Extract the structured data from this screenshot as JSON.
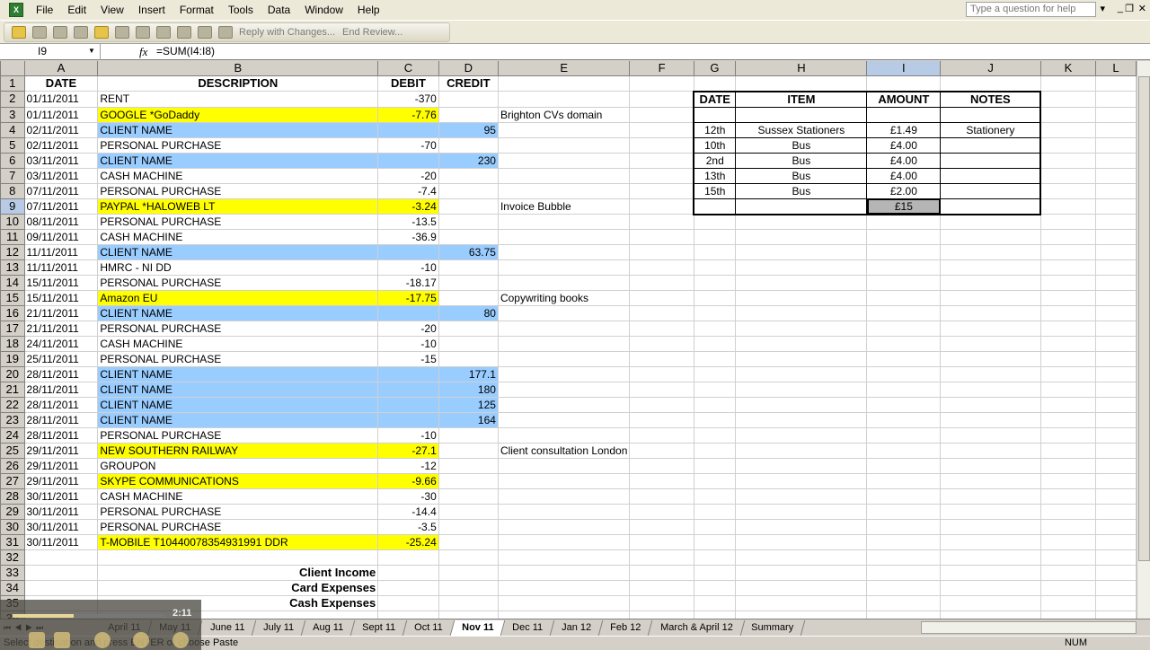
{
  "menu": [
    "File",
    "Edit",
    "View",
    "Insert",
    "Format",
    "Tools",
    "Data",
    "Window",
    "Help"
  ],
  "help_placeholder": "Type a question for help",
  "toolbar": {
    "reply": "Reply with Changes...",
    "end_review": "End Review..."
  },
  "formula_bar": {
    "name_box": "I9",
    "formula": "=SUM(I4:I8)"
  },
  "columns": [
    "A",
    "B",
    "C",
    "D",
    "E",
    "F",
    "G",
    "H",
    "I",
    "J",
    "K",
    "L"
  ],
  "selected_cell": "I9",
  "colors": {
    "yellow_highlight": "#ffff00",
    "blue_highlight": "#99ccff"
  },
  "headers": {
    "date": "DATE",
    "description": "DESCRIPTION",
    "debit": "DEBIT",
    "credit": "CREDIT"
  },
  "rows": [
    {
      "date": "01/11/2011",
      "desc": "RENT",
      "debit": "-370",
      "credit": "",
      "note": "",
      "hl": ""
    },
    {
      "date": "01/11/2011",
      "desc": "GOOGLE *GoDaddy",
      "debit": "-7.76",
      "credit": "",
      "note": "Brighton CVs domain",
      "hl": "yellow"
    },
    {
      "date": "02/11/2011",
      "desc": "CLIENT NAME",
      "debit": "",
      "credit": "95",
      "note": "",
      "hl": "blue"
    },
    {
      "date": "02/11/2011",
      "desc": "PERSONAL PURCHASE",
      "debit": "-70",
      "credit": "",
      "note": "",
      "hl": ""
    },
    {
      "date": "03/11/2011",
      "desc": "CLIENT NAME",
      "debit": "",
      "credit": "230",
      "note": "",
      "hl": "blue"
    },
    {
      "date": "03/11/2011",
      "desc": "CASH MACHINE",
      "debit": "-20",
      "credit": "",
      "note": "",
      "hl": ""
    },
    {
      "date": "07/11/2011",
      "desc": "PERSONAL PURCHASE",
      "debit": "-7.4",
      "credit": "",
      "note": "",
      "hl": ""
    },
    {
      "date": "07/11/2011",
      "desc": "PAYPAL *HALOWEB LT",
      "debit": "-3.24",
      "credit": "",
      "note": "Invoice Bubble",
      "hl": "yellow"
    },
    {
      "date": "08/11/2011",
      "desc": "PERSONAL PURCHASE",
      "debit": "-13.5",
      "credit": "",
      "note": "",
      "hl": ""
    },
    {
      "date": "09/11/2011",
      "desc": "CASH MACHINE",
      "debit": "-36.9",
      "credit": "",
      "note": "",
      "hl": ""
    },
    {
      "date": "11/11/2011",
      "desc": "CLIENT NAME",
      "debit": "",
      "credit": "63.75",
      "note": "",
      "hl": "blue"
    },
    {
      "date": "11/11/2011",
      "desc": "HMRC - NI DD",
      "debit": "-10",
      "credit": "",
      "note": "",
      "hl": ""
    },
    {
      "date": "15/11/2011",
      "desc": "PERSONAL PURCHASE",
      "debit": "-18.17",
      "credit": "",
      "note": "",
      "hl": ""
    },
    {
      "date": "15/11/2011",
      "desc": "Amazon EU",
      "debit": "-17.75",
      "credit": "",
      "note": "Copywriting books",
      "hl": "yellow"
    },
    {
      "date": "21/11/2011",
      "desc": "CLIENT NAME",
      "debit": "",
      "credit": "80",
      "note": "",
      "hl": "blue"
    },
    {
      "date": "21/11/2011",
      "desc": "PERSONAL PURCHASE",
      "debit": "-20",
      "credit": "",
      "note": "",
      "hl": ""
    },
    {
      "date": "24/11/2011",
      "desc": "CASH MACHINE",
      "debit": "-10",
      "credit": "",
      "note": "",
      "hl": ""
    },
    {
      "date": "25/11/2011",
      "desc": "PERSONAL PURCHASE",
      "debit": "-15",
      "credit": "",
      "note": "",
      "hl": ""
    },
    {
      "date": "28/11/2011",
      "desc": "CLIENT NAME",
      "debit": "",
      "credit": "177.1",
      "note": "",
      "hl": "blue"
    },
    {
      "date": "28/11/2011",
      "desc": "CLIENT NAME",
      "debit": "",
      "credit": "180",
      "note": "",
      "hl": "blue"
    },
    {
      "date": "28/11/2011",
      "desc": "CLIENT NAME",
      "debit": "",
      "credit": "125",
      "note": "",
      "hl": "blue"
    },
    {
      "date": "28/11/2011",
      "desc": "CLIENT NAME",
      "debit": "",
      "credit": "164",
      "note": "",
      "hl": "blue"
    },
    {
      "date": "28/11/2011",
      "desc": "PERSONAL PURCHASE",
      "debit": "-10",
      "credit": "",
      "note": "",
      "hl": ""
    },
    {
      "date": "29/11/2011",
      "desc": "NEW SOUTHERN RAILWAY",
      "debit": "-27.1",
      "credit": "",
      "note": "Client consultation London",
      "hl": "yellow"
    },
    {
      "date": "29/11/2011",
      "desc": "GROUPON",
      "debit": "-12",
      "credit": "",
      "note": "",
      "hl": ""
    },
    {
      "date": "29/11/2011",
      "desc": "SKYPE COMMUNICATIONS",
      "debit": "-9.66",
      "credit": "",
      "note": "",
      "hl": "yellow"
    },
    {
      "date": "30/11/2011",
      "desc": "CASH MACHINE",
      "debit": "-30",
      "credit": "",
      "note": "",
      "hl": ""
    },
    {
      "date": "30/11/2011",
      "desc": "PERSONAL PURCHASE",
      "debit": "-14.4",
      "credit": "",
      "note": "",
      "hl": ""
    },
    {
      "date": "30/11/2011",
      "desc": "PERSONAL PURCHASE",
      "debit": "-3.5",
      "credit": "",
      "note": "",
      "hl": ""
    },
    {
      "date": "30/11/2011",
      "desc": "T-MOBILE                    T10440078354931991 DDR",
      "debit": "-25.24",
      "credit": "",
      "note": "",
      "hl": "yellow"
    }
  ],
  "summary_labels": [
    "Client Income",
    "Card Expenses",
    "Cash Expenses"
  ],
  "cash_table": {
    "headers": [
      "DATE",
      "ITEM",
      "AMOUNT",
      "NOTES"
    ],
    "rows": [
      [
        "",
        "",
        "",
        ""
      ],
      [
        "12th",
        "Sussex Stationers",
        "£1.49",
        "Stationery"
      ],
      [
        "10th",
        "Bus",
        "£4.00",
        ""
      ],
      [
        "2nd",
        "Bus",
        "£4.00",
        ""
      ],
      [
        "13th",
        "Bus",
        "£4.00",
        ""
      ],
      [
        "15th",
        "Bus",
        "£2.00",
        ""
      ],
      [
        "",
        "",
        "£15",
        ""
      ]
    ]
  },
  "sheet_tabs": [
    "April 11",
    "May 11",
    "June 11",
    "July 11",
    "Aug 11",
    "Sept 11",
    "Oct 11",
    "Nov 11",
    "Dec 11",
    "Jan 12",
    "Feb 12",
    "March & April 12",
    "Summary"
  ],
  "active_tab": "Nov 11",
  "status": {
    "message": "Select destination and press ENTER or choose Paste",
    "num": "NUM"
  },
  "player": {
    "time": "2:11",
    "progress": 0.4
  }
}
